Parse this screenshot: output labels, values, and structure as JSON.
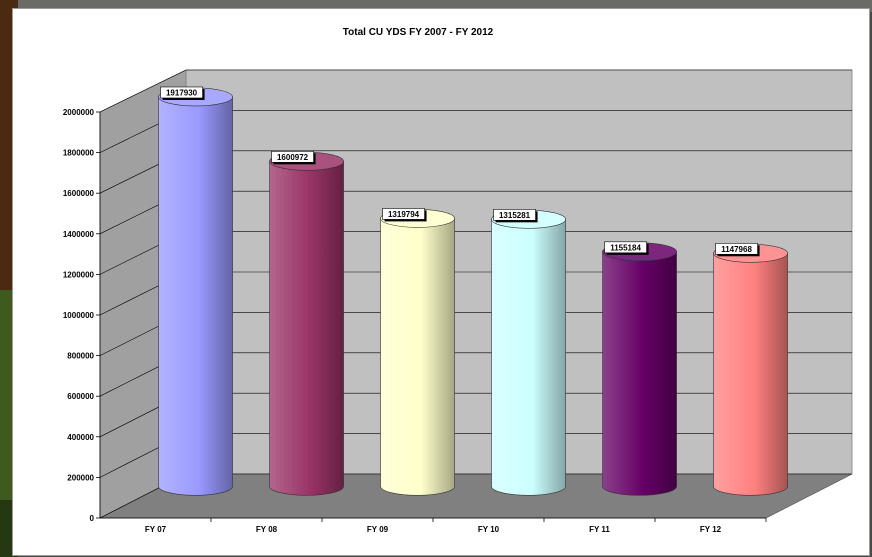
{
  "chart_data": {
    "type": "bar",
    "style": "3d-cylinder",
    "title": "Total CU YDS FY 2007 - FY 2012",
    "categories": [
      "FY 07",
      "FY 08",
      "FY 09",
      "FY 10",
      "FY 11",
      "FY 12"
    ],
    "values": [
      1917930,
      1600972,
      1319794,
      1315281,
      1155184,
      1147968
    ],
    "data_labels": [
      "1917930",
      "1600972",
      "1319794",
      "1315281",
      "1155184",
      "1147968"
    ],
    "colors": [
      "#9999ff",
      "#993366",
      "#ffffcc",
      "#ccffff",
      "#660066",
      "#ff8080"
    ],
    "ylim": [
      0,
      2000000
    ],
    "yticks": [
      "0",
      "200000",
      "400000",
      "600000",
      "800000",
      "1000000",
      "1200000",
      "1400000",
      "1600000",
      "1800000",
      "2000000"
    ],
    "grid": true,
    "legend": "none"
  }
}
